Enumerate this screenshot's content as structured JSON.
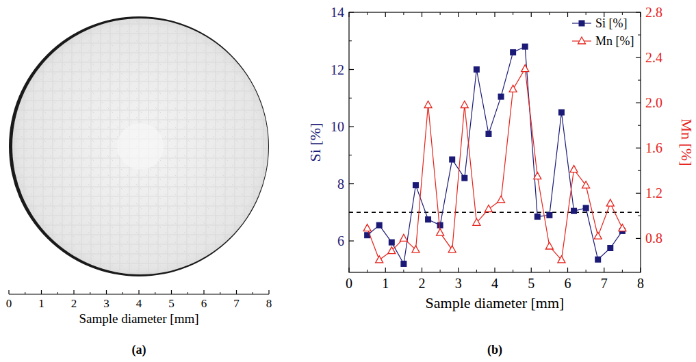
{
  "chart_data": [
    {
      "type": "image",
      "panel": "(a)",
      "x_label": "Sample diameter [mm]",
      "xlim": [
        0,
        8
      ],
      "xticks": [
        0,
        1,
        2,
        3,
        4,
        5,
        6,
        7,
        8
      ]
    },
    {
      "type": "line",
      "panel": "(b)",
      "x_label": "Sample diameter [mm]",
      "y_label": "Si [%]",
      "y2_label": "Mn [%]",
      "xlim": [
        0,
        8
      ],
      "xticks": [
        0,
        1,
        2,
        3,
        4,
        5,
        6,
        7,
        8
      ],
      "ylim": [
        4.9,
        14
      ],
      "yticks": [
        6,
        8,
        10,
        12,
        14
      ],
      "y2lim": [
        0.5,
        2.8
      ],
      "y2ticks": [
        0.8,
        1.2,
        1.6,
        {
          "value": 2,
          "label": "2.0"
        },
        2.4,
        2.8
      ],
      "legend": "upper right",
      "reference_line": 7,
      "x": [
        0.5,
        0.83,
        1.17,
        1.5,
        1.83,
        2.17,
        2.5,
        2.83,
        3.17,
        3.5,
        3.83,
        4.17,
        4.5,
        4.83,
        5.17,
        5.5,
        5.83,
        6.17,
        6.5,
        6.83,
        7.17,
        7.5
      ],
      "series": [
        {
          "name": "Si [%]",
          "color": "#1b1b77",
          "marker": "square",
          "values": [
            6.2,
            6.55,
            5.95,
            5.2,
            7.95,
            6.75,
            6.55,
            8.85,
            8.2,
            12.0,
            9.75,
            11.05,
            12.6,
            12.8,
            6.85,
            6.9,
            10.5,
            7.05,
            7.15,
            5.35,
            5.75,
            6.35
          ]
        },
        {
          "name": "Mn [%]",
          "color": "#e5231b",
          "marker": "triangle",
          "axis": "y2",
          "values": [
            0.89,
            0.61,
            0.69,
            0.8,
            0.7,
            1.98,
            0.85,
            0.7,
            1.98,
            0.94,
            1.06,
            1.14,
            2.12,
            2.3,
            1.35,
            0.73,
            0.61,
            1.41,
            1.27,
            0.82,
            1.11,
            0.89
          ]
        }
      ]
    }
  ]
}
